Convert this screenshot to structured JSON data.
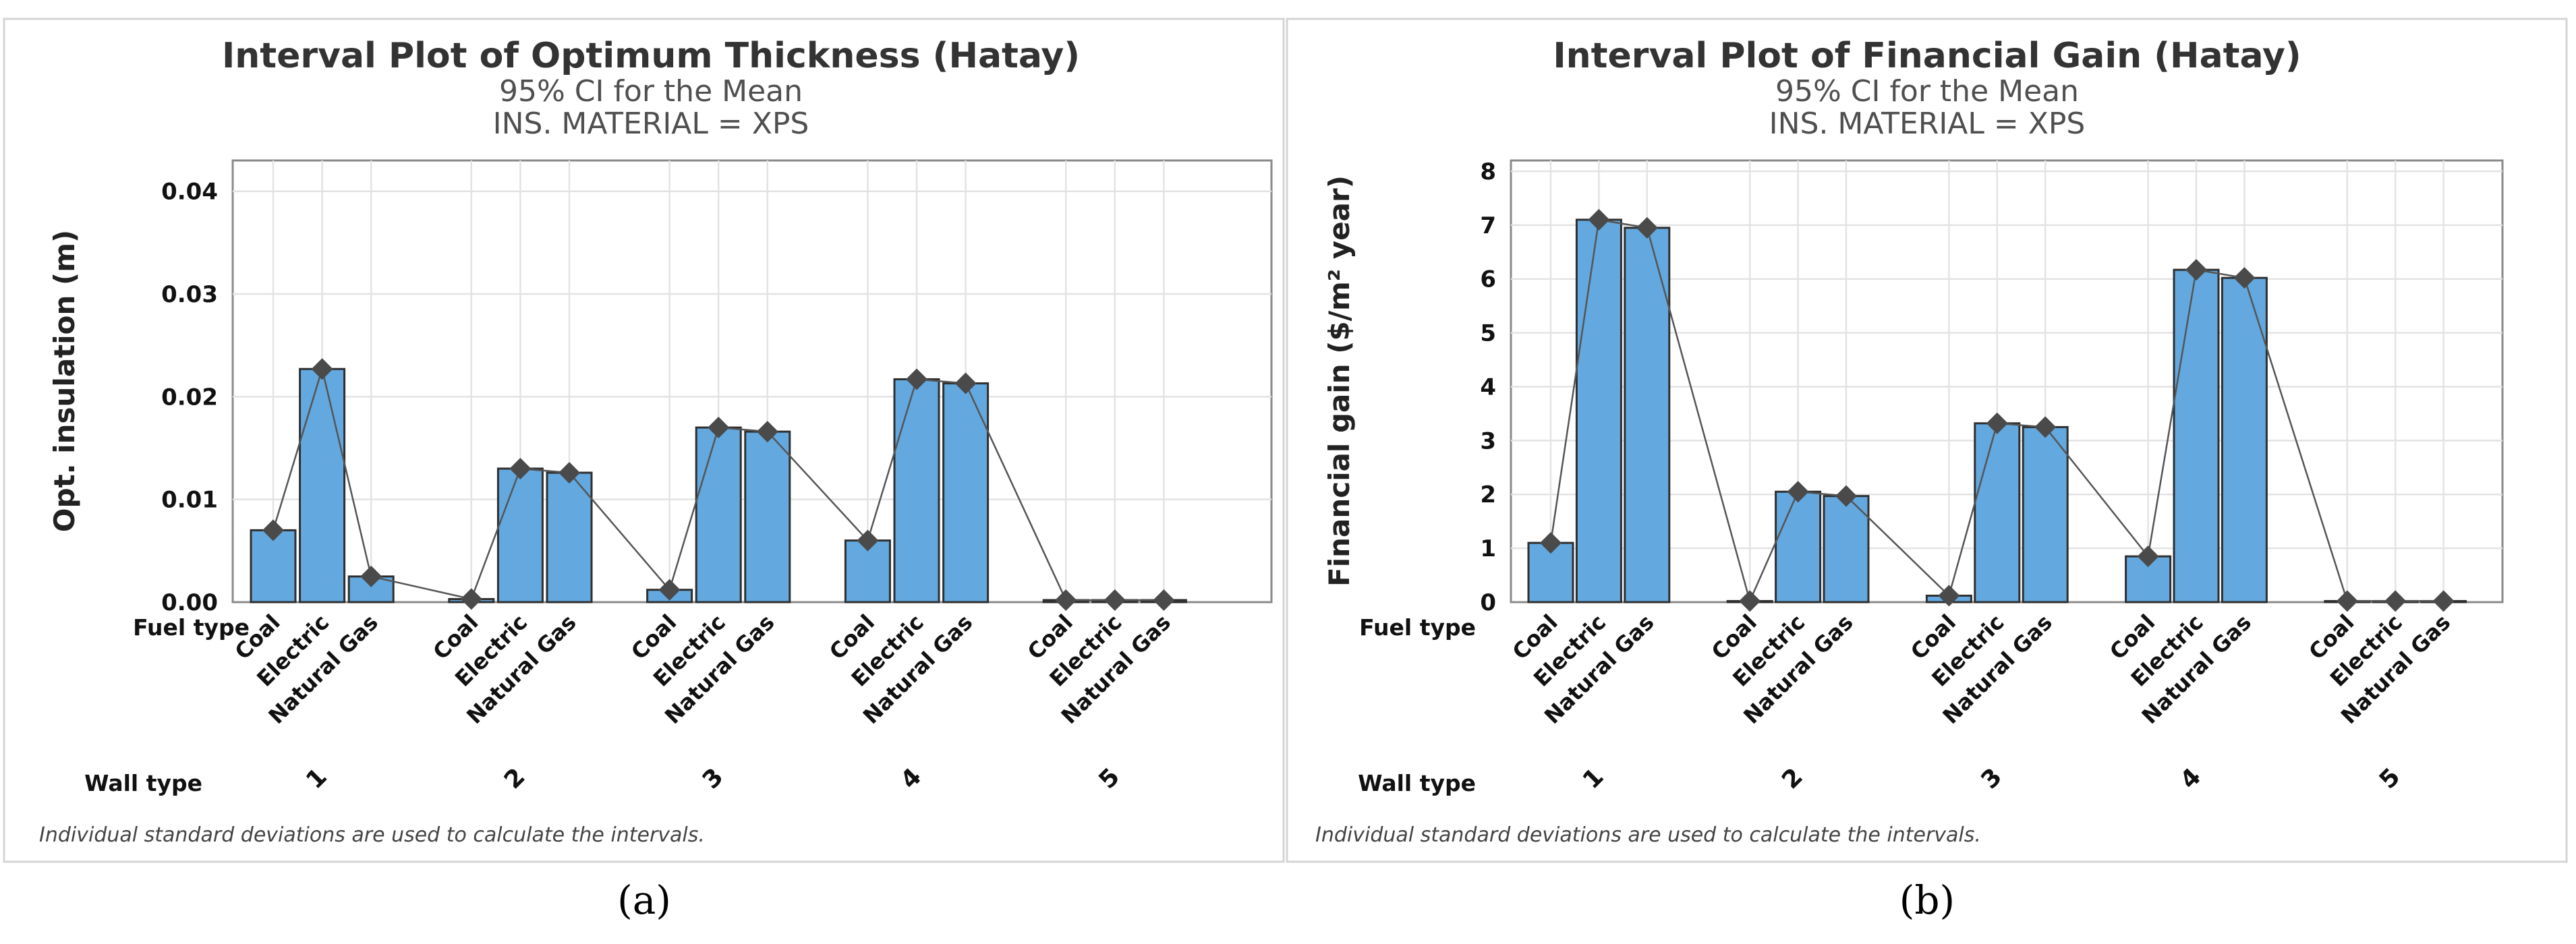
{
  "chart_data": [
    {
      "type": "bar",
      "title": "Interval Plot of Optimum Thickness (Hatay)",
      "subtitle": "95% CI for the Mean",
      "subtitle2": "INS. MATERIAL = XPS",
      "ylabel": "Opt. insulation (m)",
      "ylim": [
        0,
        0.043
      ],
      "yticks": [
        "0.00",
        "0.01",
        "0.02",
        "0.03",
        "0.04"
      ],
      "ytick_values": [
        0,
        0.01,
        0.02,
        0.03,
        0.04
      ],
      "row_label_fuel": "Fuel type",
      "row_label_wall": "Wall type",
      "fuel_types": [
        "Coal",
        "Electric",
        "Natural Gas"
      ],
      "wall_types": [
        "1",
        "2",
        "3",
        "4",
        "5"
      ],
      "values": [
        0.007,
        0.0227,
        0.0025,
        0.0003,
        0.013,
        0.0126,
        0.0012,
        0.017,
        0.0166,
        0.006,
        0.0217,
        0.0213,
        0.0002,
        0.0002,
        0.0002
      ],
      "footnote": "Individual standard deviations are used to calculate the intervals.",
      "caption": "(a)"
    },
    {
      "type": "bar",
      "title": "Interval Plot of Financial Gain (Hatay)",
      "subtitle": "95% CI for the Mean",
      "subtitle2": "INS. MATERIAL = XPS",
      "ylabel": "Financial gain ($/m² year)",
      "ylim": [
        0,
        8.2
      ],
      "yticks": [
        "0",
        "1",
        "2",
        "3",
        "4",
        "5",
        "6",
        "7",
        "8"
      ],
      "ytick_values": [
        0,
        1,
        2,
        3,
        4,
        5,
        6,
        7,
        8
      ],
      "row_label_fuel": "Fuel type",
      "row_label_wall": "Wall type",
      "fuel_types": [
        "Coal",
        "Electric",
        "Natural Gas"
      ],
      "wall_types": [
        "1",
        "2",
        "3",
        "4",
        "5"
      ],
      "values": [
        1.1,
        7.1,
        6.95,
        0.02,
        2.05,
        1.97,
        0.12,
        3.32,
        3.25,
        0.85,
        6.17,
        6.02,
        0.02,
        0.02,
        0.02
      ],
      "footnote": "Individual standard deviations are used to calculate the intervals.",
      "caption": "(b)"
    }
  ]
}
